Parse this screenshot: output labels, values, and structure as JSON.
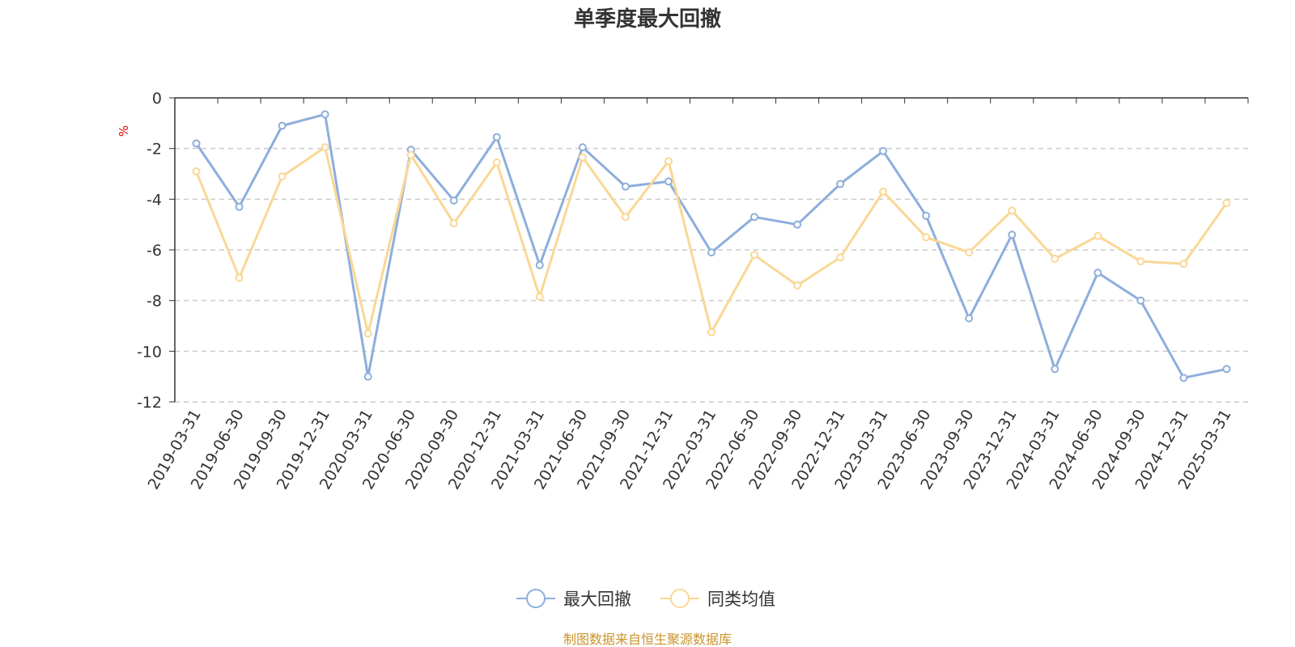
{
  "chart_data": {
    "type": "line",
    "title": "单季度最大回撤",
    "ylabel": "%",
    "ylim": [
      -12,
      0
    ],
    "yticks": [
      "0",
      "-2",
      "-4",
      "-6",
      "-8",
      "-10",
      "-12"
    ],
    "grid": "horizontal-dashed",
    "legend_position": "bottom-center",
    "categories": [
      "2019-03-31",
      "2019-06-30",
      "2019-09-30",
      "2019-12-31",
      "2020-03-31",
      "2020-06-30",
      "2020-09-30",
      "2020-12-31",
      "2021-03-31",
      "2021-06-30",
      "2021-09-30",
      "2021-12-31",
      "2022-03-31",
      "2022-06-30",
      "2022-09-30",
      "2022-12-31",
      "2023-03-31",
      "2023-06-30",
      "2023-09-30",
      "2023-12-31",
      "2024-03-31",
      "2024-06-30",
      "2024-09-30",
      "2024-12-31",
      "2025-03-31"
    ],
    "series": [
      {
        "name": "最大回撤",
        "color": "#8eaedb",
        "values": [
          -1.8,
          -4.3,
          -1.1,
          -0.65,
          -11.0,
          -2.05,
          -4.05,
          -1.55,
          -6.6,
          -1.95,
          -3.5,
          -3.3,
          -6.1,
          -4.7,
          -5.0,
          -3.4,
          -2.1,
          -4.65,
          -8.7,
          -5.4,
          -10.7,
          -6.9,
          -8.0,
          -11.05,
          -10.7
        ]
      },
      {
        "name": "同类均值",
        "color": "#fad796",
        "values": [
          -2.9,
          -7.1,
          -3.1,
          -1.95,
          -9.3,
          -2.25,
          -4.95,
          -2.55,
          -7.85,
          -2.35,
          -4.7,
          -2.5,
          -9.25,
          -6.2,
          -7.4,
          -6.3,
          -3.7,
          -5.5,
          -6.1,
          -4.45,
          -6.35,
          -5.45,
          -6.45,
          -6.55,
          -4.15
        ]
      }
    ]
  },
  "footer": {
    "source": "制图数据来自恒生聚源数据库"
  }
}
